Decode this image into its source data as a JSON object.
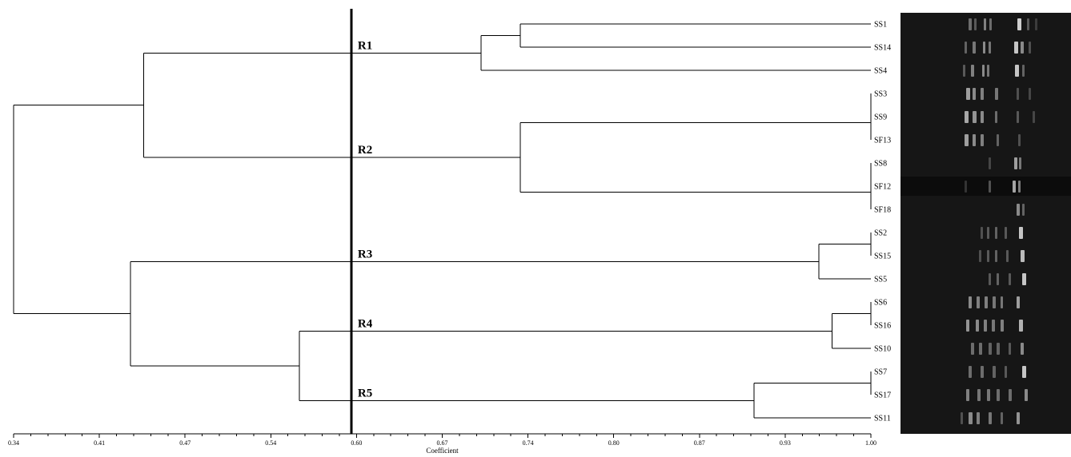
{
  "axis": {
    "title": "Coefficient",
    "min": 0.34,
    "max": 1.0,
    "ticks": [
      "0.34",
      "0.41",
      "0.47",
      "0.54",
      "0.60",
      "0.67",
      "0.74",
      "0.80",
      "0.87",
      "0.93",
      "1.00"
    ]
  },
  "cut_coefficient": 0.6,
  "leaves": [
    "SS1",
    "SS14",
    "SS4",
    "SS3",
    "SS9",
    "SF13",
    "SS8",
    "SF12",
    "SF18",
    "SS2",
    "SS15",
    "SS5",
    "SS6",
    "SS16",
    "SS10",
    "SS7",
    "SS17",
    "SS11"
  ],
  "merges": [
    {
      "a": "SS1",
      "b": "SS14",
      "coef": 0.73
    },
    {
      "a": "SS1+SS14",
      "b": "SS4",
      "coef": 0.7
    },
    {
      "a": "SS3",
      "b": "SS9",
      "coef": 1.0
    },
    {
      "a": "SS3+SS9",
      "b": "SF13",
      "coef": 1.0
    },
    {
      "a": "SS8",
      "b": "SF12",
      "coef": 1.0
    },
    {
      "a": "SS8+SF12",
      "b": "SF18",
      "coef": 1.0
    },
    {
      "a": "SS3-SF13",
      "b": "SS8-SF18",
      "coef": 0.73
    },
    {
      "a": "R1",
      "b": "R2",
      "coef": 0.44
    },
    {
      "a": "SS2",
      "b": "SS15",
      "coef": 1.0
    },
    {
      "a": "SS2+SS15",
      "b": "SS5",
      "coef": 0.96
    },
    {
      "a": "SS6",
      "b": "SS16",
      "coef": 1.0
    },
    {
      "a": "SS6+SS16",
      "b": "SS10",
      "coef": 0.97
    },
    {
      "a": "SS7",
      "b": "SS17",
      "coef": 1.0
    },
    {
      "a": "SS7+SS17",
      "b": "SS11",
      "coef": 0.91
    },
    {
      "a": "R4",
      "b": "R5",
      "coef": 0.56
    },
    {
      "a": "R3",
      "b": "R4+R5",
      "coef": 0.43
    },
    {
      "a": "R1+R2",
      "b": "R3-R5",
      "coef": 0.34
    }
  ],
  "clusters": [
    {
      "label": "R1"
    },
    {
      "label": "R2"
    },
    {
      "label": "R3"
    },
    {
      "label": "R4"
    },
    {
      "label": "R5"
    }
  ],
  "gel_image": {
    "kind": "DNA fingerprint gel bands",
    "background": "#161616",
    "band_color": "#d8d8d8"
  }
}
